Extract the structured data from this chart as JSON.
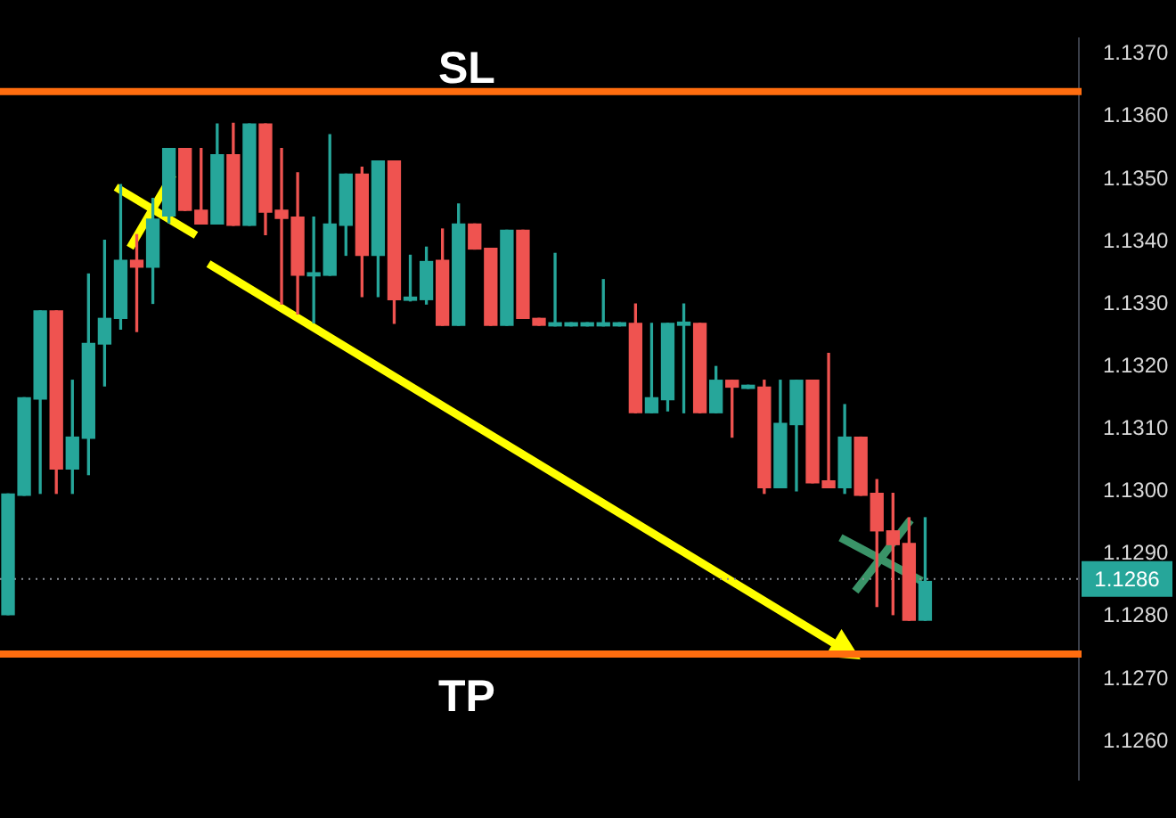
{
  "chart_data": {
    "type": "candlestick",
    "categories": [
      null,
      null,
      null,
      null,
      null,
      null,
      null,
      null,
      null,
      null,
      null,
      null,
      null,
      null,
      null,
      null,
      null,
      null,
      null,
      null,
      null,
      null,
      null,
      null,
      null,
      null,
      null,
      null,
      null,
      null,
      null,
      null,
      null,
      null,
      null,
      null,
      null,
      null,
      null,
      null,
      null,
      null,
      null,
      null,
      null,
      null,
      null,
      null,
      null,
      null,
      null,
      null,
      null,
      null,
      null,
      null,
      null,
      null,
      null,
      null,
      null,
      null,
      null,
      null,
      null,
      null,
      null
    ],
    "ohlc": [
      [
        1.12803,
        1.12996,
        1.12803,
        1.12996
      ],
      [
        1.12994,
        1.1315,
        1.12994,
        1.1315
      ],
      [
        1.13148,
        1.13289,
        1.12997,
        1.13289
      ],
      [
        1.13289,
        1.13289,
        1.12997,
        1.13036
      ],
      [
        1.13036,
        1.13178,
        1.12997,
        1.13087
      ],
      [
        1.13085,
        1.13348,
        1.13027,
        1.13237
      ],
      [
        1.13236,
        1.13402,
        1.13169,
        1.13277
      ],
      [
        1.13277,
        1.13491,
        1.1326,
        1.1337
      ],
      [
        1.1337,
        1.13411,
        1.13256,
        1.13359
      ],
      [
        1.13359,
        1.13469,
        1.13301,
        1.13436
      ],
      [
        1.13441,
        1.13549,
        1.1343,
        1.13549
      ],
      [
        1.13549,
        1.13549,
        1.1345,
        1.1345
      ],
      [
        1.1345,
        1.13549,
        1.13428,
        1.13428
      ],
      [
        1.13428,
        1.13588,
        1.13428,
        1.13539
      ],
      [
        1.13539,
        1.13589,
        1.13426,
        1.13426
      ],
      [
        1.13426,
        1.13588,
        1.13426,
        1.13588
      ],
      [
        1.13588,
        1.13588,
        1.13411,
        1.13447
      ],
      [
        1.1345,
        1.13549,
        1.133,
        1.13437
      ],
      [
        1.13439,
        1.1351,
        1.13284,
        1.13346
      ],
      [
        1.13345,
        1.13439,
        1.1327,
        1.1335
      ],
      [
        1.13346,
        1.13571,
        1.13346,
        1.13428
      ],
      [
        1.13426,
        1.13508,
        1.13378,
        1.13508
      ],
      [
        1.13508,
        1.13519,
        1.13312,
        1.13378
      ],
      [
        1.13378,
        1.13529,
        1.13312,
        1.13529
      ],
      [
        1.13529,
        1.13529,
        1.13269,
        1.13307
      ],
      [
        1.13306,
        1.13378,
        1.13305,
        1.13311
      ],
      [
        1.13307,
        1.13391,
        1.133,
        1.13368
      ],
      [
        1.1337,
        1.1342,
        1.13266,
        1.13266
      ],
      [
        1.13266,
        1.1346,
        1.13266,
        1.13428
      ],
      [
        1.13428,
        1.13428,
        1.13388,
        1.13388
      ],
      [
        1.13389,
        1.13389,
        1.13266,
        1.13266
      ],
      [
        1.13266,
        1.13418,
        1.13266,
        1.13418
      ],
      [
        1.13418,
        1.13418,
        1.13277,
        1.13277
      ],
      [
        1.13277,
        1.13277,
        1.13266,
        1.13266
      ],
      [
        1.13265,
        1.13381,
        1.13265,
        1.1327
      ],
      [
        1.13265,
        1.1327,
        1.13265,
        1.1327
      ],
      [
        1.13265,
        1.1327,
        1.13265,
        1.1327
      ],
      [
        1.13265,
        1.13339,
        1.13265,
        1.1327
      ],
      [
        1.13265,
        1.1327,
        1.13265,
        1.1327
      ],
      [
        1.13269,
        1.133,
        1.13126,
        1.13126
      ],
      [
        1.13126,
        1.13269,
        1.13126,
        1.1315
      ],
      [
        1.13147,
        1.13269,
        1.13129,
        1.13269
      ],
      [
        1.13266,
        1.133,
        1.13126,
        1.13271
      ],
      [
        1.13269,
        1.13269,
        1.13126,
        1.13126
      ],
      [
        1.13126,
        1.132,
        1.13126,
        1.13178
      ],
      [
        1.13178,
        1.13178,
        1.13087,
        1.13167
      ],
      [
        1.13165,
        1.1317,
        1.13165,
        1.1317
      ],
      [
        1.13167,
        1.13178,
        1.12997,
        1.13006
      ],
      [
        1.13006,
        1.13178,
        1.13006,
        1.13109
      ],
      [
        1.13107,
        1.13178,
        1.13001,
        1.13178
      ],
      [
        1.13178,
        1.13178,
        1.13014,
        1.13014
      ],
      [
        1.13017,
        1.13221,
        1.13006,
        1.13006
      ],
      [
        1.13006,
        1.13139,
        1.12997,
        1.13087
      ],
      [
        1.13087,
        1.13087,
        1.12994,
        1.12994
      ],
      [
        1.12997,
        1.13019,
        1.12816,
        1.12937
      ],
      [
        1.12937,
        1.12997,
        1.12803,
        1.12915
      ],
      [
        1.12917,
        1.12958,
        1.12794,
        1.12794
      ],
      [
        1.12794,
        1.12958,
        1.12794,
        1.12856
      ],
      null,
      null,
      null,
      null,
      null,
      null,
      null,
      null,
      null
    ],
    "colors": [
      "#26a69a",
      "#26a69a",
      "#26a69a",
      "#ef5350",
      "#26a69a",
      "#26a69a",
      "#26a69a",
      "#26a69a",
      "#ef5350",
      "#26a69a",
      "#26a69a",
      "#ef5350",
      "#ef5350",
      "#26a69a",
      "#ef5350",
      "#26a69a",
      "#ef5350",
      "#ef5350",
      "#ef5350",
      "#26a69a",
      "#26a69a",
      "#26a69a",
      "#ef5350",
      "#26a69a",
      "#ef5350",
      "#26a69a",
      "#26a69a",
      "#ef5350",
      "#26a69a",
      "#ef5350",
      "#ef5350",
      "#26a69a",
      "#ef5350",
      "#ef5350",
      "#26a69a",
      "#26a69a",
      "#26a69a",
      "#26a69a",
      "#26a69a",
      "#ef5350",
      "#26a69a",
      "#26a69a",
      "#26a69a",
      "#ef5350",
      "#26a69a",
      "#ef5350",
      "#26a69a",
      "#ef5350",
      "#26a69a",
      "#26a69a",
      "#ef5350",
      "#ef5350",
      "#26a69a",
      "#ef5350",
      "#ef5350",
      "#ef5350",
      "#ef5350",
      "#26a69a",
      null,
      null,
      null,
      null,
      null,
      null,
      null,
      null,
      null
    ],
    "ylim": [
      1.12538,
      1.13726
    ],
    "yticks": [
      {
        "value": 1.126,
        "label": "1.1260"
      },
      {
        "value": 1.127,
        "label": "1.1270"
      },
      {
        "value": 1.128,
        "label": "1.1280"
      },
      {
        "value": 1.129,
        "label": "1.1290"
      },
      {
        "value": 1.13,
        "label": "1.1300"
      },
      {
        "value": 1.131,
        "label": "1.1310"
      },
      {
        "value": 1.132,
        "label": "1.1320"
      },
      {
        "value": 1.133,
        "label": "1.1330"
      },
      {
        "value": 1.134,
        "label": "1.1340"
      },
      {
        "value": 1.135,
        "label": "1.1350"
      },
      {
        "value": 1.136,
        "label": "1.1360"
      },
      {
        "value": 1.137,
        "label": "1.1370"
      }
    ],
    "tick_labels": "y",
    "ref_lines": [
      {
        "axis": "y",
        "value": 1.1364,
        "label": "SL",
        "color": "#ff6d0f"
      },
      {
        "axis": "y",
        "value": 1.1274,
        "label": "TP",
        "color": "#ff6d0f"
      },
      {
        "axis": "y",
        "value": 1.1286,
        "label": "1.1286",
        "color": "#8c8f96",
        "line_style": "dotted"
      }
    ]
  }
}
